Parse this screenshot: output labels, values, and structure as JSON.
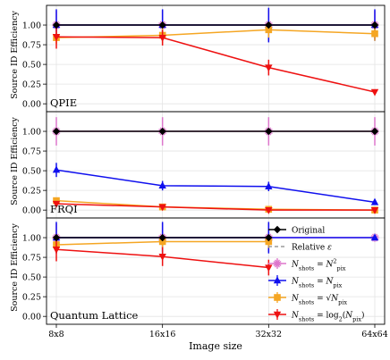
{
  "chart_data": {
    "type": "line",
    "x_categories": [
      "8x8",
      "16x16",
      "32x32",
      "64x64"
    ],
    "xlabel": "Image size",
    "ylabel": "Source ID Efficiency",
    "ylim": [
      -0.1,
      1.25
    ],
    "yticks": [
      "0.00",
      "0.25",
      "0.50",
      "0.75",
      "1.00"
    ],
    "legend": {
      "placement": "bottom-right of bottom panel",
      "entries": [
        {
          "label": "Original",
          "color": "#000000",
          "marker": "diamond",
          "style": "solid"
        },
        {
          "label": "Relative ε",
          "color": "#888888",
          "marker": "none",
          "style": "dashed"
        },
        {
          "label": "N_shots = N_pix²",
          "color": "#dd77cc",
          "marker": "star",
          "style": "solid"
        },
        {
          "label": "N_shots = N_pix",
          "color": "#1010ee",
          "marker": "triangle-up",
          "style": "solid"
        },
        {
          "label": "N_shots = √N_pix",
          "color": "#f5a623",
          "marker": "square",
          "style": "solid"
        },
        {
          "label": "N_shots = log₂(N_pix)",
          "color": "#ee1111",
          "marker": "triangle-down",
          "style": "solid"
        }
      ]
    },
    "panels": [
      {
        "title": "QPIE",
        "series": [
          {
            "name": "N_shots = N_pix²",
            "color": "#dd77cc",
            "marker": "star",
            "values": [
              1.0,
              1.0,
              1.0,
              1.0
            ],
            "err": [
              0.18,
              0.18,
              0.2,
              0.18
            ]
          },
          {
            "name": "N_shots = N_pix",
            "color": "#1010ee",
            "marker": "triangle-up",
            "values": [
              1.0,
              1.0,
              1.0,
              1.0
            ],
            "err": [
              0.2,
              0.2,
              0.22,
              0.2
            ]
          },
          {
            "name": "N_shots = √N_pix",
            "color": "#f5a623",
            "marker": "square",
            "values": [
              0.84,
              0.87,
              0.94,
              0.89
            ],
            "err": [
              0.08,
              0.1,
              0.1,
              0.09
            ]
          },
          {
            "name": "N_shots = log₂(N_pix)",
            "color": "#ee1111",
            "marker": "triangle-down",
            "values": [
              0.85,
              0.84,
              0.46,
              0.15
            ],
            "err": [
              0.15,
              0.1,
              0.1,
              0.03
            ]
          },
          {
            "name": "Original",
            "color": "#000000",
            "marker": "diamond",
            "values": [
              1.0,
              1.0,
              1.0,
              1.0
            ],
            "err": [
              0,
              0,
              0,
              0
            ]
          }
        ]
      },
      {
        "title": "FRQI",
        "series": [
          {
            "name": "N_shots = N_pix²",
            "color": "#dd77cc",
            "marker": "star",
            "values": [
              1.0,
              1.0,
              1.0,
              1.0
            ],
            "err": [
              0.18,
              0.18,
              0.18,
              0.18
            ]
          },
          {
            "name": "N_shots = N_pix",
            "color": "#1010ee",
            "marker": "triangle-up",
            "values": [
              0.51,
              0.31,
              0.3,
              0.1
            ],
            "err": [
              0.09,
              0.06,
              0.06,
              0.03
            ]
          },
          {
            "name": "N_shots = √N_pix",
            "color": "#f5a623",
            "marker": "square",
            "values": [
              0.12,
              0.04,
              0.01,
              0.0
            ],
            "err": [
              0.04,
              0.02,
              0.01,
              0.01
            ]
          },
          {
            "name": "N_shots = log₂(N_pix)",
            "color": "#ee1111",
            "marker": "triangle-down",
            "values": [
              0.08,
              0.04,
              0.0,
              0.0
            ],
            "err": [
              0.03,
              0.02,
              0.01,
              0.01
            ]
          },
          {
            "name": "Original",
            "color": "#000000",
            "marker": "diamond",
            "values": [
              1.0,
              1.0,
              1.0,
              1.0
            ],
            "err": [
              0,
              0,
              0,
              0
            ]
          }
        ]
      },
      {
        "title": "Quantum Lattice",
        "series": [
          {
            "name": "N_shots = N_pix²",
            "color": "#dd77cc",
            "marker": "star",
            "values": [
              1.0,
              1.0,
              1.0,
              1.0
            ],
            "err": [
              0.18,
              0.18,
              0.18,
              0.0
            ]
          },
          {
            "name": "N_shots = N_pix",
            "color": "#1010ee",
            "marker": "triangle-up",
            "values": [
              1.0,
              1.0,
              1.0,
              1.0
            ],
            "err": [
              0.2,
              0.2,
              0.2,
              0.0
            ]
          },
          {
            "name": "N_shots = √N_pix",
            "color": "#f5a623",
            "marker": "square",
            "values": [
              0.91,
              0.95,
              0.95,
              null
            ],
            "err": [
              0.1,
              0.08,
              0.08,
              0
            ]
          },
          {
            "name": "N_shots = log₂(N_pix)",
            "color": "#ee1111",
            "marker": "triangle-down",
            "values": [
              0.85,
              0.76,
              0.62,
              null
            ],
            "err": [
              0.15,
              0.12,
              0.1,
              0
            ]
          },
          {
            "name": "Original",
            "color": "#000000",
            "marker": "diamond",
            "values": [
              1.0,
              1.0,
              1.0,
              null
            ],
            "err": [
              0,
              0,
              0,
              0
            ]
          }
        ]
      }
    ]
  }
}
